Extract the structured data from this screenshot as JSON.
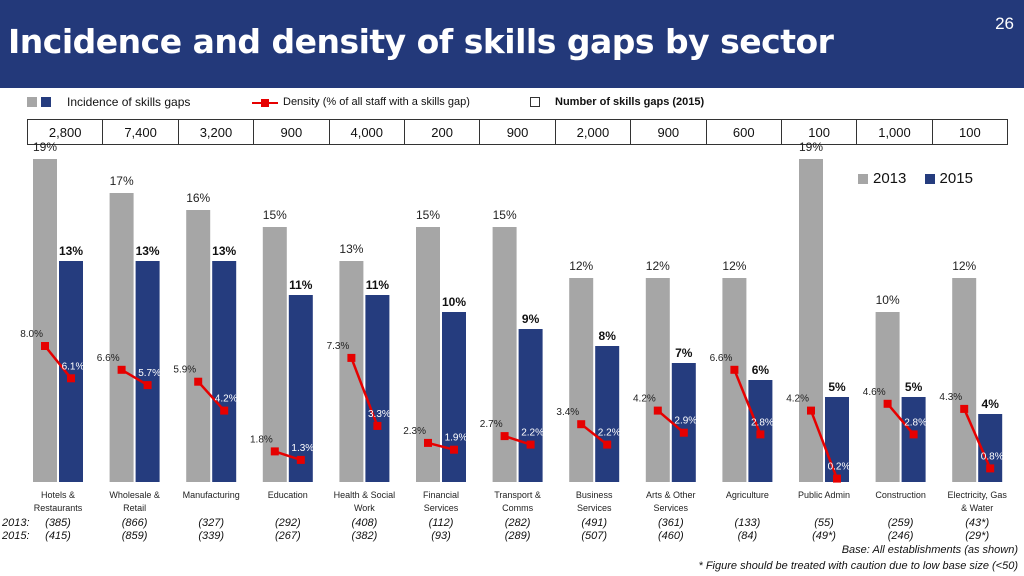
{
  "header": {
    "title": "Incidence and density of skills gaps by sector",
    "page_number": "26"
  },
  "legend_top": {
    "incidence": "Incidence of skills gaps",
    "density": "Density (% of all staff with a skills gap)",
    "number": "Number of skills gaps (2015)"
  },
  "legend_right": {
    "s2013": "2013",
    "s2015": "2015"
  },
  "colors": {
    "banner": "#23397a",
    "bar_2013": "#a6a6a6",
    "bar_2015": "#253c7e",
    "density_line": "#e60000"
  },
  "chart_data": {
    "type": "bar",
    "categories": [
      [
        "Hotels &",
        "Restaurants"
      ],
      [
        "Wholesale &",
        "Retail"
      ],
      [
        "Manufacturing"
      ],
      [
        "Education"
      ],
      [
        "Health & Social",
        "Work"
      ],
      [
        "Financial",
        "Services"
      ],
      [
        "Transport &",
        "Comms"
      ],
      [
        "Business",
        "Services"
      ],
      [
        "Arts & Other",
        "Services"
      ],
      [
        "Agriculture"
      ],
      [
        "Public Admin"
      ],
      [
        "Construction"
      ],
      [
        "Electricity, Gas",
        "& Water"
      ]
    ],
    "series": [
      {
        "name": "2013",
        "values": [
          19,
          17,
          16,
          15,
          13,
          15,
          15,
          12,
          12,
          12,
          19,
          10,
          12
        ],
        "labels": [
          "19%",
          "17%",
          "16%",
          "15%",
          "13%",
          "15%",
          "15%",
          "12%",
          "12%",
          "12%",
          "19%",
          "10%",
          "12%"
        ]
      },
      {
        "name": "2015",
        "values": [
          13,
          13,
          13,
          11,
          11,
          10,
          9,
          8,
          7,
          6,
          5,
          5,
          4
        ],
        "labels": [
          "13%",
          "13%",
          "13%",
          "11%",
          "11%",
          "10%",
          "9%",
          "8%",
          "7%",
          "6%",
          "5%",
          "5%",
          "4%"
        ]
      }
    ],
    "density": {
      "d2013": [
        8.0,
        6.6,
        5.9,
        1.8,
        7.3,
        2.3,
        2.7,
        3.4,
        4.2,
        6.6,
        4.2,
        4.6,
        4.3
      ],
      "d2015": [
        6.1,
        5.7,
        4.2,
        1.3,
        3.3,
        1.9,
        2.2,
        2.2,
        2.9,
        2.8,
        0.2,
        2.8,
        0.8
      ],
      "labels2013": [
        "8.0%",
        "6.6%",
        "5.9%",
        "1.8%",
        "7.3%",
        "2.3%",
        "2.7%",
        "3.4%",
        "4.2%",
        "6.6%",
        "4.2%",
        "4.6%",
        "4.3%"
      ],
      "labels2015": [
        "6.1%",
        "5.7%",
        "4.2%",
        "1.3%",
        "3.3%",
        "1.9%",
        "2.2%",
        "2.2%",
        "2.9%",
        "2.8%",
        "0.2%",
        "2.8%",
        "0.8%"
      ]
    },
    "ylim": [
      0,
      20
    ]
  },
  "counts_2015": [
    "2,800",
    "7,400",
    "3,200",
    "900",
    "4,000",
    "200",
    "900",
    "2,000",
    "900",
    "600",
    "100",
    "1,000",
    "100"
  ],
  "bases": {
    "label2013": "2013:",
    "label2015": "2015:",
    "b2013": [
      "(385)",
      "(866)",
      "(327)",
      "(292)",
      "(408)",
      "(112)",
      "(282)",
      "(491)",
      "(361)",
      "(133)",
      "(55)",
      "(259)",
      "(43*)"
    ],
    "b2015": [
      "(415)",
      "(859)",
      "(339)",
      "(267)",
      "(382)",
      "(93)",
      "(289)",
      "(507)",
      "(460)",
      "(84)",
      "(49*)",
      "(246)",
      "(29*)"
    ]
  },
  "notes": {
    "base": "Base: All establishments (as shown)",
    "caution": "* Figure should be treated with caution due to low base size (<50)"
  }
}
